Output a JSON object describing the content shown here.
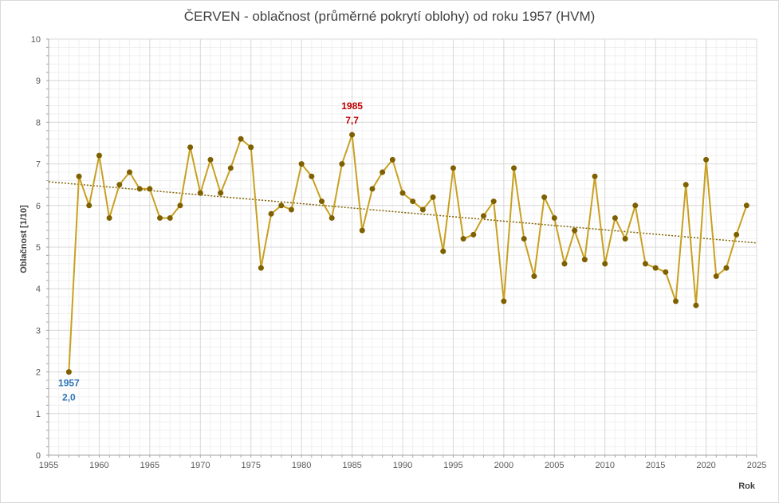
{
  "chart_data": {
    "type": "line",
    "title": "ČERVEN - oblačnost (průměrné pokrytí oblohy) od roku 1957 (HVM)",
    "xlabel": "Rok",
    "ylabel": "Oblačnost [1/10]",
    "xlim": [
      1955,
      2025
    ],
    "ylim": [
      0,
      10
    ],
    "x_ticks": [
      "1955",
      "1960",
      "1965",
      "1970",
      "1975",
      "1980",
      "1985",
      "1990",
      "1995",
      "2000",
      "2005",
      "2010",
      "2015",
      "2020",
      "2025"
    ],
    "y_ticks": [
      "0",
      "1",
      "2",
      "3",
      "4",
      "5",
      "6",
      "7",
      "8",
      "9",
      "10"
    ],
    "grid": true,
    "series": [
      {
        "x": [
          1957,
          1958,
          1959,
          1960,
          1961,
          1962,
          1963,
          1964,
          1965,
          1966,
          1967,
          1968,
          1969,
          1970,
          1971,
          1972,
          1973,
          1974,
          1975,
          1976,
          1977,
          1978,
          1979,
          1980,
          1981,
          1982,
          1983,
          1984,
          1985,
          1986,
          1987,
          1988,
          1989,
          1990,
          1991,
          1992,
          1993,
          1994,
          1995,
          1996,
          1997,
          1998,
          1999,
          2000,
          2001,
          2002,
          2003,
          2004,
          2005,
          2006,
          2007,
          2008,
          2009,
          2010,
          2011,
          2012,
          2013,
          2014,
          2015,
          2016,
          2017,
          2018,
          2019,
          2020,
          2021,
          2022,
          2023,
          2024
        ],
        "values": [
          2.0,
          6.7,
          6.0,
          7.2,
          5.7,
          6.5,
          6.8,
          6.4,
          6.4,
          5.7,
          5.7,
          6.0,
          7.4,
          6.3,
          7.1,
          6.3,
          6.9,
          7.6,
          7.4,
          4.5,
          5.8,
          6.0,
          5.9,
          7.0,
          6.7,
          6.1,
          5.7,
          7.0,
          7.7,
          5.4,
          6.4,
          6.8,
          7.1,
          6.3,
          6.1,
          5.9,
          6.2,
          4.9,
          6.9,
          5.2,
          5.3,
          5.75,
          6.1,
          3.7,
          6.9,
          5.2,
          4.3,
          6.2,
          5.7,
          4.6,
          5.4,
          4.7,
          6.7,
          4.6,
          5.7,
          5.2,
          6.0,
          4.6,
          4.5,
          4.4,
          3.7,
          6.5,
          3.6,
          7.1,
          4.3,
          4.5,
          5.3,
          6.0
        ],
        "color": "#c8a020",
        "marker_color": "#7f6000"
      }
    ],
    "trendline": {
      "x": [
        1955,
        2025
      ],
      "values": [
        6.57,
        5.1
      ],
      "style": "dotted",
      "color": "#7f6000"
    },
    "annotations": [
      {
        "year": "1957",
        "value": "2,0",
        "color": "#2e75b6"
      },
      {
        "year": "1985",
        "value": "7,7",
        "color": "#c00000"
      }
    ]
  }
}
